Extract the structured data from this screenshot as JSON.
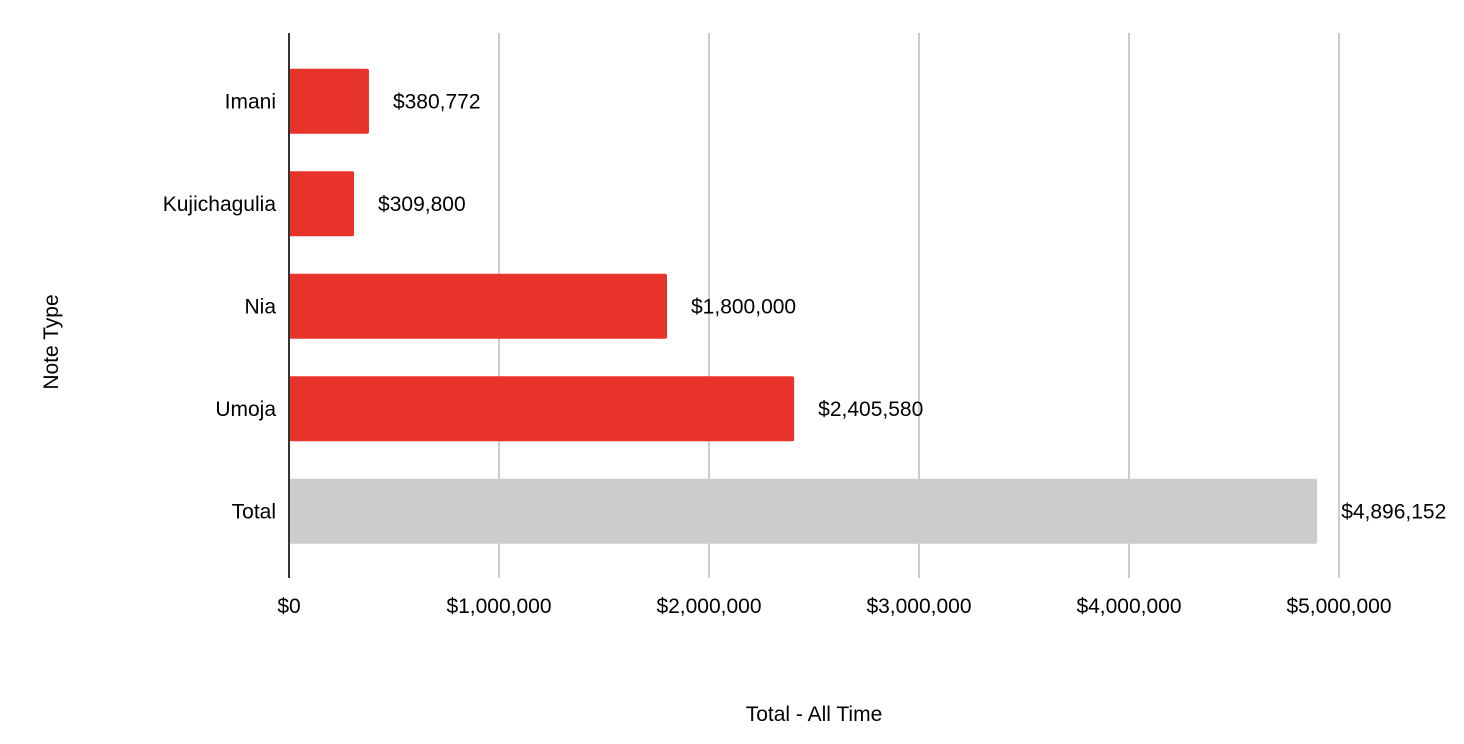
{
  "chart_data": {
    "type": "bar",
    "orientation": "horizontal",
    "title": "",
    "xlabel": "Total - All Time",
    "ylabel": "Note Type",
    "categories": [
      "Imani",
      "Kujichagulia",
      "Nia",
      "Umoja",
      "Total"
    ],
    "values": [
      380772,
      309800,
      1800000,
      2405580,
      4896152
    ],
    "data_labels": [
      "$380,772",
      "$309,800",
      "$1,800,000",
      "$2,405,580",
      "$4,896,152"
    ],
    "bar_colors": [
      "#e8332a",
      "#e8332a",
      "#e8332a",
      "#e8332a",
      "#cccccc"
    ],
    "xlim": [
      0,
      5000000
    ],
    "x_ticks": [
      0,
      1000000,
      2000000,
      3000000,
      4000000,
      5000000
    ],
    "x_tick_labels": [
      "$0",
      "$1,000,000",
      "$2,000,000",
      "$3,000,000",
      "$4,000,000",
      "$5,000,000"
    ],
    "grid": true,
    "legend": "none"
  }
}
